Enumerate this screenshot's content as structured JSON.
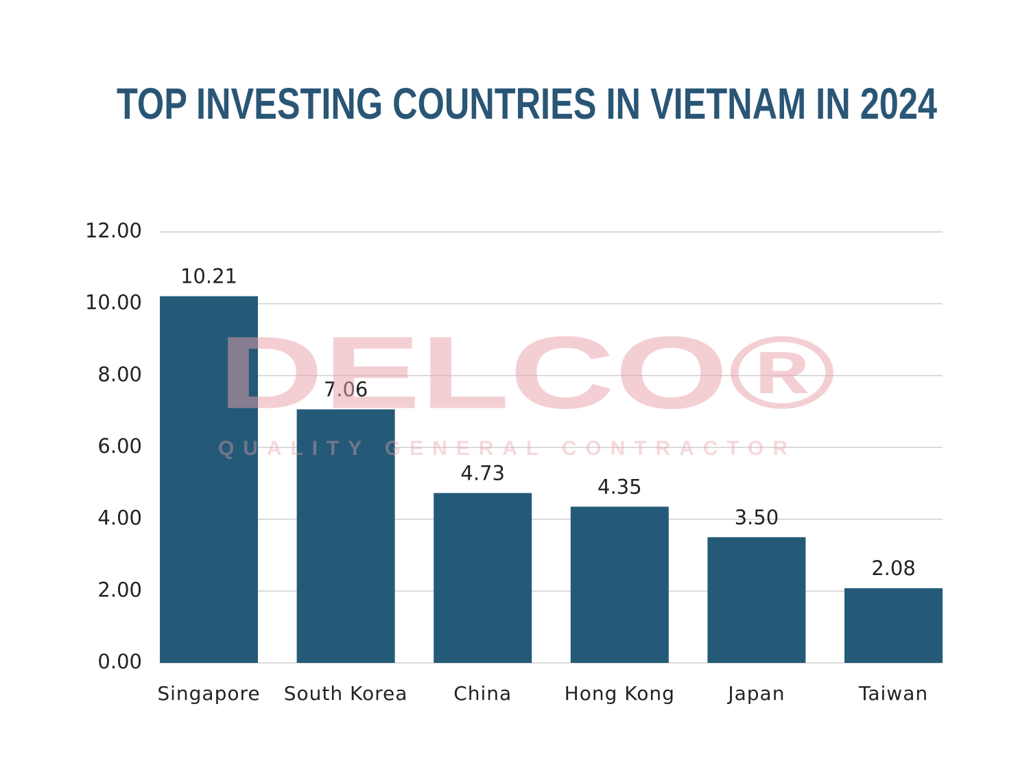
{
  "chart_data": {
    "type": "bar",
    "title": "TOP INVESTING COUNTRIES IN VIETNAM IN 2024",
    "categories": [
      "Singapore",
      "South Korea",
      "China",
      "Hong Kong",
      "Japan",
      "Taiwan"
    ],
    "values": [
      10.21,
      7.06,
      4.73,
      4.35,
      3.5,
      2.08
    ],
    "value_labels": [
      "10.21",
      "7.06",
      "4.73",
      "4.35",
      "3.50",
      "2.08"
    ],
    "color": "#245a78",
    "ylim": [
      0,
      12
    ],
    "yticks": [
      {
        "value": 0,
        "label": "0.00"
      },
      {
        "value": 2,
        "label": "2.00"
      },
      {
        "value": 4,
        "label": "4.00"
      },
      {
        "value": 6,
        "label": "6.00"
      },
      {
        "value": 8,
        "label": "8.00"
      },
      {
        "value": 10,
        "label": "10.00"
      },
      {
        "value": 12,
        "label": "12.00"
      }
    ],
    "grid": true,
    "watermark": "DELCO®",
    "watermark_tagline": "QUALITY GENERAL CONTRACTOR"
  }
}
